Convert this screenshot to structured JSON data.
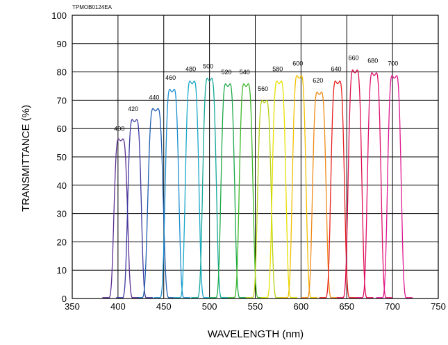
{
  "chart_data": {
    "type": "line",
    "code": "TPMOB0124EA",
    "xlabel": "WAVELENGTH (nm)",
    "ylabel": "TRANSMITTANCE (%)",
    "xlim": [
      350,
      750
    ],
    "ylim": [
      0,
      100
    ],
    "xticks": [
      350,
      400,
      450,
      500,
      550,
      600,
      650,
      700,
      750
    ],
    "yticks": [
      0,
      10,
      20,
      30,
      40,
      50,
      60,
      70,
      80,
      90,
      100
    ],
    "grid": true,
    "series": [
      {
        "name": "400",
        "center": 403,
        "peak": 58,
        "width": 8,
        "color": "#5a2d91"
      },
      {
        "name": "420",
        "center": 418,
        "peak": 65,
        "width": 8,
        "color": "#3a3aa0"
      },
      {
        "name": "440",
        "center": 441,
        "peak": 69,
        "width": 9,
        "color": "#1f5fb0"
      },
      {
        "name": "460",
        "center": 459,
        "peak": 76,
        "width": 8,
        "color": "#1a8fd0"
      },
      {
        "name": "480",
        "center": 481,
        "peak": 79,
        "width": 8,
        "color": "#18a8c8"
      },
      {
        "name": "500",
        "center": 500,
        "peak": 80,
        "width": 8,
        "color": "#12a89a"
      },
      {
        "name": "520",
        "center": 520,
        "peak": 78,
        "width": 8,
        "color": "#1ca84a"
      },
      {
        "name": "540",
        "center": 540,
        "peak": 78,
        "width": 8,
        "color": "#3cb828"
      },
      {
        "name": "560",
        "center": 560,
        "peak": 72,
        "width": 8,
        "color": "#b8d010"
      },
      {
        "name": "580",
        "center": 576,
        "peak": 79,
        "width": 8,
        "color": "#e8e000"
      },
      {
        "name": "600",
        "center": 598,
        "peak": 81,
        "width": 8,
        "color": "#f0c000"
      },
      {
        "name": "620",
        "center": 620,
        "peak": 75,
        "width": 8,
        "color": "#f08a18"
      },
      {
        "name": "640",
        "center": 640,
        "peak": 79,
        "width": 8,
        "color": "#e82020"
      },
      {
        "name": "660",
        "center": 659,
        "peak": 83,
        "width": 8,
        "color": "#e01050"
      },
      {
        "name": "680",
        "center": 680,
        "peak": 82,
        "width": 8,
        "color": "#e01070"
      },
      {
        "name": "700",
        "center": 702,
        "peak": 81,
        "width": 8,
        "color": "#e01890"
      }
    ]
  }
}
